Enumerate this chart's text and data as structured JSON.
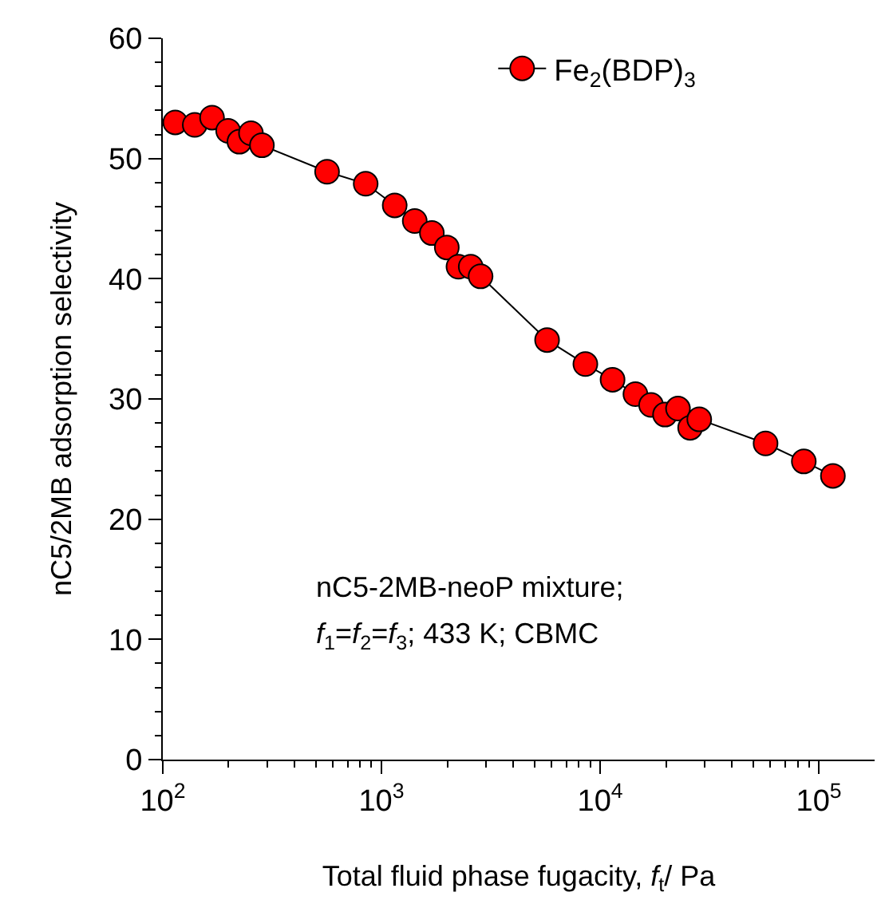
{
  "chart_data": {
    "type": "line",
    "xlabel": "Total fluid phase fugacity, f$_{t}$/ Pa",
    "ylabel": "nC5/2MB adsorption selectivity",
    "log": "x",
    "marker": "circle",
    "line_style": "solid",
    "grid": false,
    "legend": "top right",
    "xlim": [
      100,
      180000
    ],
    "xticks": [
      {
        "value": 100,
        "label": "10$^{2}$"
      },
      {
        "value": 1000,
        "label": "10$^{3}$"
      },
      {
        "value": 10000,
        "label": "10$^{4}$"
      },
      {
        "value": 100000,
        "label": "10$^{5}$"
      }
    ],
    "ylim": [
      0,
      60
    ],
    "yticks": [
      0,
      10,
      20,
      30,
      40,
      50,
      60
    ],
    "annotations": [
      "nC5-2MB-neoP mixture;",
      "f$_{1}$=f$_{2}$=f$_{3}$; 433 K; CBMC"
    ],
    "x": [
      114,
      140,
      168,
      199,
      224,
      253,
      284,
      564,
      847,
      1150,
      1420,
      1700,
      1990,
      2250,
      2560,
      2840,
      5720,
      8560,
      11400,
      14500,
      17100,
      19800,
      22700,
      25800,
      28400,
      57100,
      85400,
      116000
    ],
    "series": [
      {
        "name": "Fe$_{2}$(BDP)$_{3}$",
        "color": "#ff0000",
        "values": [
          53.0,
          52.8,
          53.4,
          52.3,
          51.4,
          52.1,
          51.1,
          48.9,
          47.9,
          46.1,
          44.8,
          43.8,
          42.6,
          41.0,
          41.0,
          40.2,
          34.9,
          32.9,
          31.6,
          30.4,
          29.5,
          28.7,
          29.2,
          27.6,
          28.3,
          26.3,
          24.8,
          23.6
        ]
      }
    ]
  }
}
